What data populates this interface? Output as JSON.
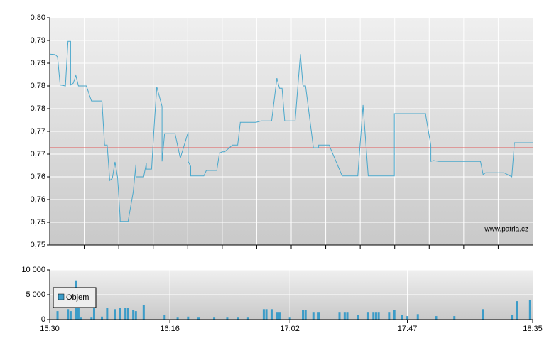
{
  "chart_data": [
    {
      "type": "line",
      "x": [
        "15:30",
        "15:32",
        "15:33",
        "15:34",
        "15:36",
        "15:37",
        "15:38",
        "15:38",
        "15:39",
        "15:40",
        "15:41",
        "15:44",
        "15:45",
        "15:45",
        "15:46",
        "15:50",
        "15:51",
        "15:52",
        "15:53",
        "15:54",
        "15:55",
        "15:56",
        "15:57",
        "15:57",
        "16:00",
        "16:02",
        "16:03",
        "16:03",
        "16:06",
        "16:07",
        "16:07",
        "16:09",
        "16:10",
        "16:11",
        "16:13",
        "16:13",
        "16:14",
        "16:18",
        "16:20",
        "16:20",
        "16:23",
        "16:23",
        "16:24",
        "16:24",
        "16:29",
        "16:30",
        "16:34",
        "16:35",
        "16:36",
        "16:37",
        "16:40",
        "16:42",
        "16:43",
        "16:49",
        "16:51",
        "16:55",
        "16:57",
        "16:58",
        "16:59",
        "17:00",
        "17:04",
        "17:06",
        "17:07",
        "17:08",
        "17:11",
        "17:13",
        "17:13",
        "17:17",
        "17:22",
        "17:28",
        "17:30",
        "17:32",
        "17:42",
        "17:42",
        "17:54",
        "17:54",
        "17:56",
        "17:56",
        "17:57",
        "17:59",
        "18:15",
        "18:16",
        "18:17",
        "18:24",
        "18:27",
        "18:28",
        "18:35"
      ],
      "values": [
        0.792,
        0.7919,
        0.7914,
        0.7852,
        0.785,
        0.7948,
        0.7948,
        0.7852,
        0.7856,
        0.7873,
        0.785,
        0.785,
        0.7834,
        0.7833,
        0.7817,
        0.7817,
        0.772,
        0.772,
        0.7642,
        0.7647,
        0.7683,
        0.7648,
        0.7558,
        0.7552,
        0.7552,
        0.7617,
        0.7677,
        0.765,
        0.765,
        0.768,
        0.7667,
        0.7667,
        0.7761,
        0.7848,
        0.7805,
        0.7684,
        0.7745,
        0.7745,
        0.7691,
        0.7691,
        0.7748,
        0.7684,
        0.7673,
        0.7652,
        0.7652,
        0.7664,
        0.7664,
        0.7702,
        0.7705,
        0.7705,
        0.772,
        0.772,
        0.777,
        0.777,
        0.7773,
        0.7773,
        0.7867,
        0.7845,
        0.7845,
        0.7773,
        0.7773,
        0.792,
        0.785,
        0.785,
        0.7714,
        0.7714,
        0.772,
        0.772,
        0.7652,
        0.7652,
        0.7808,
        0.7652,
        0.7652,
        0.7789,
        0.7789,
        0.7786,
        0.7719,
        0.7684,
        0.7686,
        0.7684,
        0.7684,
        0.7655,
        0.7659,
        0.7659,
        0.765,
        0.7725,
        0.7725
      ],
      "color": "#4aa8cc",
      "xlim": [
        "15:30",
        "18:35"
      ],
      "ylim": [
        0.75,
        0.8
      ],
      "yticks": [
        {
          "value": 0.75,
          "label": "0,75"
        },
        {
          "value": 0.755,
          "label": "0,75"
        },
        {
          "value": 0.76,
          "label": "0,76"
        },
        {
          "value": 0.765,
          "label": "0,76"
        },
        {
          "value": 0.77,
          "label": "0,77"
        },
        {
          "value": 0.775,
          "label": "0,77"
        },
        {
          "value": 0.78,
          "label": "0,78"
        },
        {
          "value": 0.785,
          "label": "0,78"
        },
        {
          "value": 0.79,
          "label": "0,79"
        },
        {
          "value": 0.795,
          "label": "0,79"
        },
        {
          "value": 0.8,
          "label": "0,80"
        }
      ],
      "grid": true,
      "reference_line": 0.7714,
      "reference_color": "#e05858",
      "annotation": "www.patria.cz"
    },
    {
      "type": "bar",
      "x": [
        "15:33",
        "15:37",
        "15:38",
        "15:40",
        "15:41",
        "15:42",
        "15:46",
        "15:47",
        "15:50",
        "15:52",
        "15:55",
        "15:57",
        "15:59",
        "16:00",
        "16:02",
        "16:03",
        "16:06",
        "16:14",
        "16:19",
        "16:23",
        "16:27",
        "16:33",
        "16:38",
        "16:42",
        "16:46",
        "16:52",
        "16:53",
        "16:55",
        "16:57",
        "16:58",
        "17:02",
        "17:07",
        "17:08",
        "17:11",
        "17:13",
        "17:21",
        "17:23",
        "17:24",
        "17:28",
        "17:32",
        "17:34",
        "17:35",
        "17:36",
        "17:40",
        "17:42",
        "17:45",
        "17:47",
        "17:51",
        "17:58",
        "18:05",
        "18:16",
        "18:27",
        "18:29",
        "18:34"
      ],
      "series": [
        {
          "name": "Objem",
          "color": "#3c9cc8",
          "values": [
            1700,
            2100,
            1700,
            7900,
            2600,
            400,
            400,
            3400,
            600,
            2300,
            2100,
            2300,
            2300,
            2300,
            2000,
            1700,
            3000,
            1000,
            400,
            600,
            400,
            400,
            400,
            400,
            400,
            2100,
            2100,
            2100,
            1400,
            1400,
            400,
            1900,
            1900,
            1400,
            1400,
            1400,
            1400,
            1400,
            900,
            1400,
            1400,
            1400,
            1400,
            1400,
            1900,
            1000,
            700,
            1100,
            700,
            700,
            2100,
            900,
            3700,
            3900
          ]
        }
      ],
      "xlim": [
        "15:30",
        "18:35"
      ],
      "xticks": [
        "15:30",
        "16:16",
        "17:02",
        "17:47",
        "18:35"
      ],
      "ylim": [
        0,
        10000
      ],
      "yticks": [
        0,
        {
          "value": 5000,
          "label": "5 000"
        },
        {
          "value": 10000,
          "label": "10 000"
        }
      ],
      "grid": true,
      "legend": "upper left"
    }
  ]
}
